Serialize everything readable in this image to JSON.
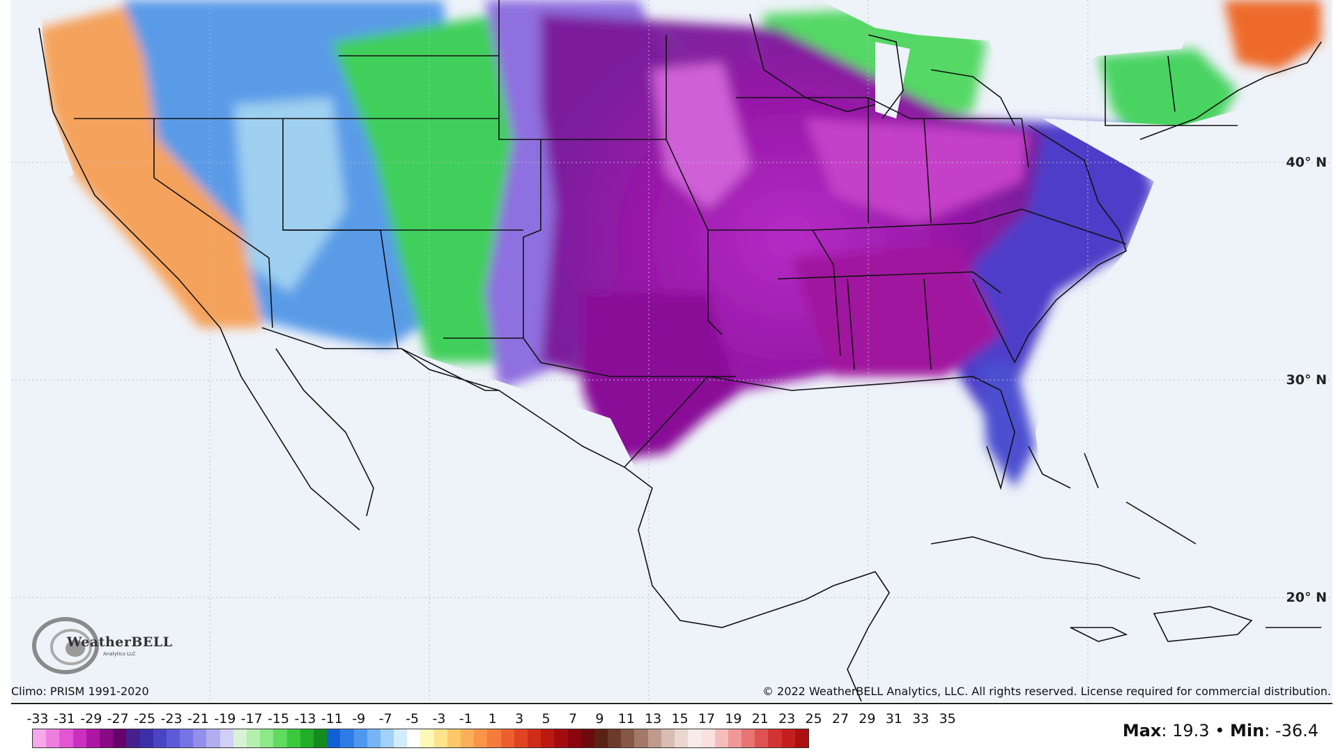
{
  "map": {
    "lat_labels": [
      "40° N",
      "30° N",
      "20° N"
    ],
    "attribution": "Climo: PRISM 1991-2020",
    "copyright": "© 2022 WeatherBELL Analytics, LLC. All rights reserved. License required for commercial distribution.",
    "logo_text": "WeatherBELL",
    "logo_sub": "Analytics LLC"
  },
  "colorbar": {
    "ticks": [
      "-33",
      "-31",
      "-29",
      "-27",
      "-25",
      "-23",
      "-21",
      "-19",
      "-17",
      "-15",
      "-13",
      "-11",
      "-9",
      "-7",
      "-5",
      "-3",
      "-1",
      "1",
      "3",
      "5",
      "7",
      "9",
      "11",
      "13",
      "15",
      "17",
      "19",
      "21",
      "23",
      "25",
      "27",
      "29",
      "31",
      "33",
      "35"
    ],
    "colors": [
      "#f7a8ea",
      "#f07ee0",
      "#e455d4",
      "#cc2fc0",
      "#ad16a4",
      "#8a0a86",
      "#66006a",
      "#451f8e",
      "#3a2fa8",
      "#4a44c4",
      "#5d5ad8",
      "#7674e4",
      "#928fea",
      "#b1aeef",
      "#d0d0f6",
      "#d8f2d6",
      "#b4efae",
      "#8de88a",
      "#5fdc5f",
      "#3bc83d",
      "#21ad27",
      "#148c1d",
      "#1060d4",
      "#2f7ce8",
      "#4f98f0",
      "#77b4f4",
      "#a1d0f8",
      "#d3ecfc",
      "#ffffff",
      "#fdf8b8",
      "#fde38a",
      "#fcc868",
      "#fbaf58",
      "#f99448",
      "#f57a3c",
      "#ee5f30",
      "#e04424",
      "#cf2c1a",
      "#bc1812",
      "#a30c0e",
      "#8a060c",
      "#6e0a0e",
      "#5a2214",
      "#6b3a2a",
      "#875746",
      "#a47868",
      "#c09a8c",
      "#d9bcb2",
      "#ead6d0",
      "#f7ece8",
      "#fbe0e0",
      "#f6bcbc",
      "#f09898",
      "#e87474",
      "#de5252",
      "#d23434",
      "#c41e1e",
      "#ad1010"
    ],
    "stats": {
      "max_label": "Max",
      "max_value": ": 19.3 • ",
      "min_label": "Min",
      "min_value": ": -36.4"
    }
  }
}
